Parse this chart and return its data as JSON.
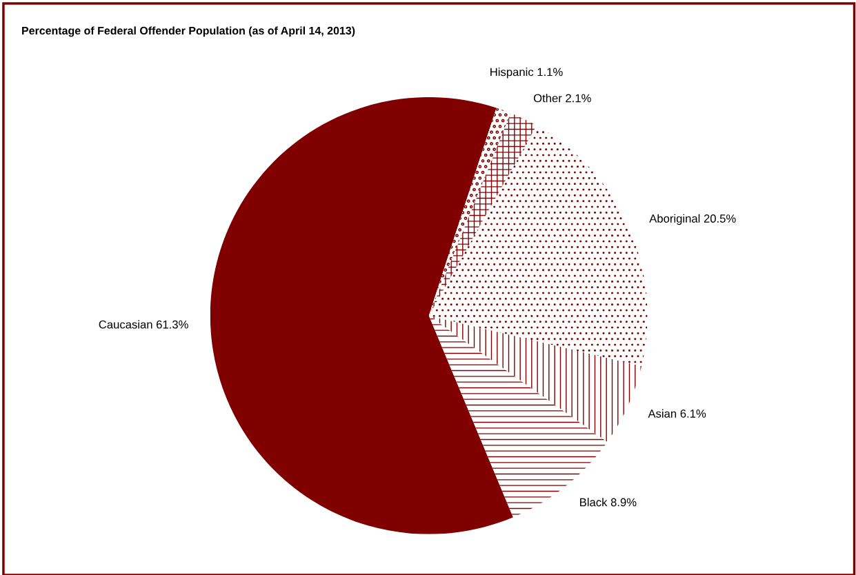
{
  "chart_data": {
    "type": "pie",
    "title": "Percentage of Federal Offender Population (as of April 14, 2013)",
    "categories": [
      "Caucasian",
      "Black",
      "Asian",
      "Aboriginal",
      "Other",
      "Hispanic"
    ],
    "values": [
      61.3,
      8.9,
      6.1,
      20.5,
      2.1,
      1.1
    ],
    "value_labels": [
      "61.3%",
      "8.9%",
      "6.1%",
      "20.5%",
      "2.1%",
      "1.1%"
    ],
    "colors": [
      "#800000",
      "#800000",
      "#800000",
      "#800000",
      "#800000",
      "#800000"
    ]
  }
}
